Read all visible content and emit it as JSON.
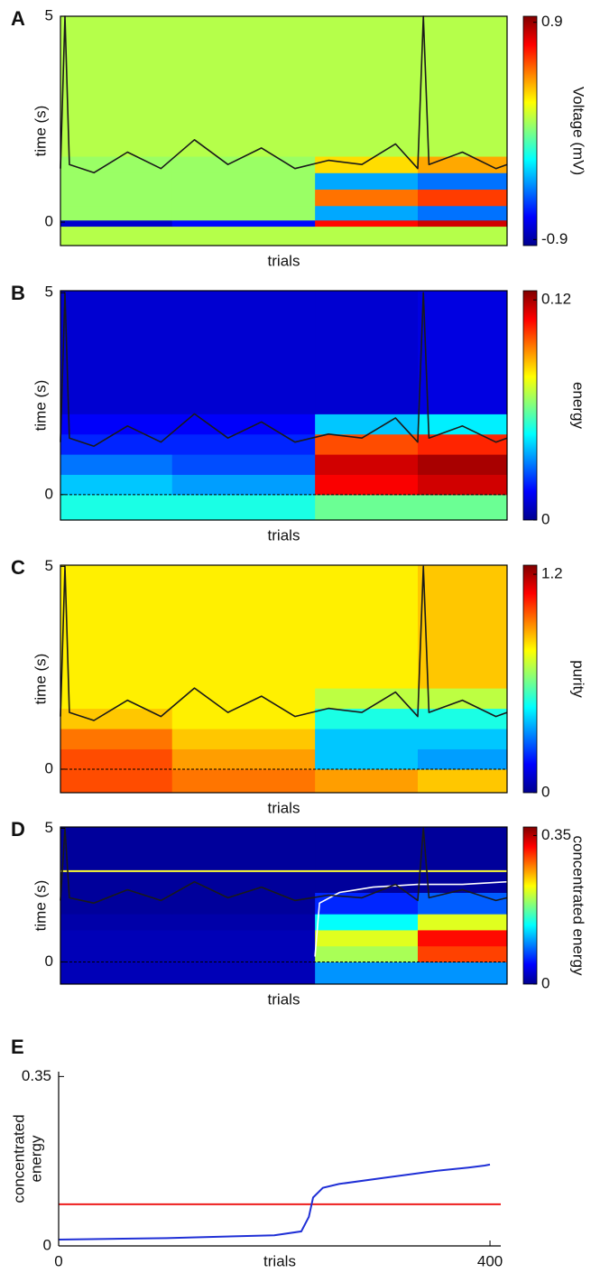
{
  "chart_data": [
    {
      "type": "heatmap",
      "label": "A",
      "xlabel": "trials",
      "ylabel": "time (s)",
      "zlabel": "Voltage (mV)",
      "xlim": [
        0,
        400
      ],
      "ylim": [
        -0.57,
        5
      ],
      "yticks": [
        0,
        5
      ],
      "zlim": [
        -0.95,
        0.95
      ],
      "zticks": [
        -0.9,
        0.9
      ],
      "zero_line": false,
      "x_edges": [
        0,
        100,
        228,
        320,
        400
      ],
      "y_edges": [
        -0.57,
        -0.1,
        0.05,
        0.4,
        0.8,
        1.2,
        1.6,
        5
      ],
      "z": [
        [
          0.1,
          0.1,
          0.1,
          0.1
        ],
        [
          -0.8,
          -0.7,
          0.7,
          0.8
        ],
        [
          0.05,
          0.05,
          -0.4,
          -0.5
        ],
        [
          0.05,
          0.05,
          0.5,
          0.6
        ],
        [
          0.05,
          0.05,
          -0.4,
          -0.5
        ],
        [
          0.05,
          0.05,
          0.3,
          0.4
        ],
        [
          0.1,
          0.1,
          0.1,
          0.1
        ]
      ],
      "line": {
        "color": "#1a1a1a",
        "x": [
          0,
          4,
          8,
          30,
          60,
          90,
          120,
          150,
          180,
          210,
          240,
          270,
          300,
          320,
          325,
          330,
          360,
          390,
          400
        ],
        "values": [
          1.3,
          5,
          1.4,
          1.2,
          1.7,
          1.3,
          2.0,
          1.4,
          1.8,
          1.3,
          1.5,
          1.4,
          1.9,
          1.3,
          5,
          1.4,
          1.7,
          1.3,
          1.4
        ]
      }
    },
    {
      "type": "heatmap",
      "label": "B",
      "xlabel": "trials",
      "ylabel": "time (s)",
      "zlabel": "energy",
      "xlim": [
        0,
        400
      ],
      "ylim": [
        -0.63,
        5.05
      ],
      "yticks": [
        0,
        5
      ],
      "zlim": [
        0,
        0.125
      ],
      "zticks": [
        0,
        0.12
      ],
      "zero_line": true,
      "x_edges": [
        0,
        100,
        228,
        320,
        400
      ],
      "y_edges": [
        -0.63,
        0,
        0.5,
        1,
        1.5,
        2,
        5.05
      ],
      "z": [
        [
          0.05,
          0.05,
          0.06,
          0.06
        ],
        [
          0.04,
          0.035,
          0.11,
          0.115
        ],
        [
          0.03,
          0.025,
          0.115,
          0.12
        ],
        [
          0.02,
          0.02,
          0.1,
          0.105
        ],
        [
          0.015,
          0.015,
          0.04,
          0.045
        ],
        [
          0.01,
          0.01,
          0.01,
          0.012
        ]
      ],
      "line": {
        "color": "#1a1a1a",
        "x": [
          0,
          4,
          8,
          30,
          60,
          90,
          120,
          150,
          180,
          210,
          240,
          270,
          300,
          320,
          325,
          330,
          360,
          390,
          400
        ],
        "values": [
          1.3,
          5,
          1.4,
          1.2,
          1.7,
          1.3,
          2.0,
          1.4,
          1.8,
          1.3,
          1.5,
          1.4,
          1.9,
          1.3,
          5,
          1.4,
          1.7,
          1.3,
          1.4
        ]
      }
    },
    {
      "type": "heatmap",
      "label": "C",
      "xlabel": "trials",
      "ylabel": "time (s)",
      "zlabel": "purity",
      "xlim": [
        0,
        400
      ],
      "ylim": [
        -0.58,
        5.03
      ],
      "yticks": [
        0,
        5
      ],
      "zlim": [
        0,
        1.25
      ],
      "zticks": [
        0,
        1.2
      ],
      "zero_line": true,
      "x_edges": [
        0,
        100,
        228,
        320,
        400
      ],
      "y_edges": [
        -0.58,
        0,
        0.5,
        1,
        1.5,
        2,
        5.03
      ],
      "z": [
        [
          1.0,
          0.95,
          0.9,
          0.85
        ],
        [
          1.0,
          0.9,
          0.4,
          0.35
        ],
        [
          0.95,
          0.85,
          0.4,
          0.4
        ],
        [
          0.85,
          0.8,
          0.5,
          0.5
        ],
        [
          0.8,
          0.8,
          0.7,
          0.7
        ],
        [
          0.8,
          0.8,
          0.8,
          0.85
        ]
      ],
      "line": {
        "color": "#1a1a1a",
        "x": [
          0,
          4,
          8,
          30,
          60,
          90,
          120,
          150,
          180,
          210,
          240,
          270,
          300,
          320,
          325,
          330,
          360,
          390,
          400
        ],
        "values": [
          1.3,
          5,
          1.4,
          1.2,
          1.7,
          1.3,
          2.0,
          1.4,
          1.8,
          1.3,
          1.5,
          1.4,
          1.9,
          1.3,
          5,
          1.4,
          1.7,
          1.3,
          1.4
        ]
      }
    },
    {
      "type": "heatmap",
      "label": "D",
      "xlabel": "trials",
      "ylabel": "time (s)",
      "zlabel": "concentrated energy",
      "xlim": [
        0,
        400
      ],
      "ylim": [
        -0.83,
        5.05
      ],
      "yticks": [
        0,
        5
      ],
      "zlim": [
        0,
        0.37
      ],
      "zticks": [
        0,
        0.35
      ],
      "zero_line": true,
      "x_edges": [
        0,
        100,
        228,
        320,
        400
      ],
      "y_edges": [
        -0.83,
        0,
        0.6,
        1.2,
        1.8,
        2.6,
        5.05
      ],
      "z": [
        [
          0.02,
          0.02,
          0.1,
          0.1
        ],
        [
          0.02,
          0.02,
          0.2,
          0.3
        ],
        [
          0.02,
          0.02,
          0.22,
          0.32
        ],
        [
          0.015,
          0.015,
          0.14,
          0.22
        ],
        [
          0.01,
          0.01,
          0.06,
          0.08
        ],
        [
          0.01,
          0.01,
          0.01,
          0.01
        ]
      ],
      "hline": {
        "value": 3.4,
        "color": "#ffff33"
      },
      "line2": {
        "color": "#ffffff",
        "x": [
          228,
          232,
          250,
          280,
          320,
          360,
          400
        ],
        "values": [
          0.2,
          2.2,
          2.6,
          2.8,
          2.9,
          2.9,
          3.0
        ]
      },
      "line": {
        "color": "#1a1a1a",
        "x": [
          0,
          4,
          8,
          30,
          60,
          90,
          120,
          150,
          180,
          210,
          240,
          270,
          300,
          320,
          325,
          330,
          360,
          390,
          400
        ],
        "values": [
          2.3,
          5,
          2.4,
          2.2,
          2.7,
          2.3,
          3.0,
          2.4,
          2.8,
          2.3,
          2.5,
          2.4,
          2.9,
          2.3,
          5,
          2.4,
          2.7,
          2.3,
          2.4
        ]
      }
    },
    {
      "type": "line",
      "label": "E",
      "xlabel": "trials",
      "ylabel": [
        "concentrated",
        "energy"
      ],
      "xlim": [
        0,
        410
      ],
      "ylim": [
        0,
        0.36
      ],
      "xticks": [
        0,
        400
      ],
      "yticks": [
        0,
        0.35
      ],
      "x": [
        0,
        100,
        200,
        225,
        232,
        236,
        245,
        260,
        300,
        350,
        380,
        395,
        400
      ],
      "series": [
        {
          "color": "#1f2fd6",
          "values": [
            0.013,
            0.016,
            0.022,
            0.03,
            0.06,
            0.1,
            0.12,
            0.128,
            0.14,
            0.155,
            0.162,
            0.166,
            0.168
          ]
        }
      ],
      "hline": {
        "value": 0.086,
        "color": "#ee1c1c"
      }
    }
  ]
}
